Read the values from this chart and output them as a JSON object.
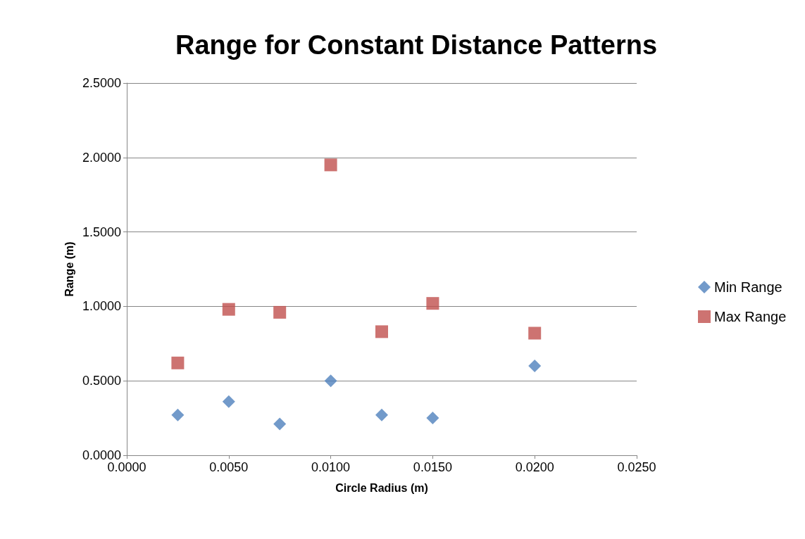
{
  "chart_data": {
    "type": "scatter",
    "title": "Range for Constant Distance Patterns",
    "xlabel": "Circle Radius (m)",
    "ylabel": "Range (m)",
    "x": [
      0.0025,
      0.005,
      0.0075,
      0.01,
      0.0125,
      0.015,
      0.02
    ],
    "series": [
      {
        "name": "Min Range",
        "color": "#4f81bd",
        "marker": "diamond",
        "values": [
          0.27,
          0.36,
          0.21,
          0.5,
          0.27,
          0.25,
          0.6
        ]
      },
      {
        "name": "Max Range",
        "color": "#c0504d",
        "marker": "square",
        "values": [
          0.62,
          0.98,
          0.96,
          1.95,
          0.83,
          1.02,
          0.82
        ]
      }
    ],
    "xlim": [
      0,
      0.025
    ],
    "xticks": [
      {
        "value": 0,
        "label": "0.0000"
      },
      {
        "value": 0.005,
        "label": "0.0050"
      },
      {
        "value": 0.01,
        "label": "0.0100"
      },
      {
        "value": 0.015,
        "label": "0.0150"
      },
      {
        "value": 0.02,
        "label": "0.0200"
      },
      {
        "value": 0.025,
        "label": "0.0250"
      }
    ],
    "ylim": [
      0,
      2.5
    ],
    "yticks": [
      {
        "value": 0,
        "label": "0.0000"
      },
      {
        "value": 0.5,
        "label": "0.5000"
      },
      {
        "value": 1,
        "label": "1.0000"
      },
      {
        "value": 1.5,
        "label": "1.5000"
      },
      {
        "value": 2,
        "label": "2.0000"
      },
      {
        "value": 2.5,
        "label": "2.5000"
      }
    ],
    "grid": "y",
    "legend": "right"
  }
}
